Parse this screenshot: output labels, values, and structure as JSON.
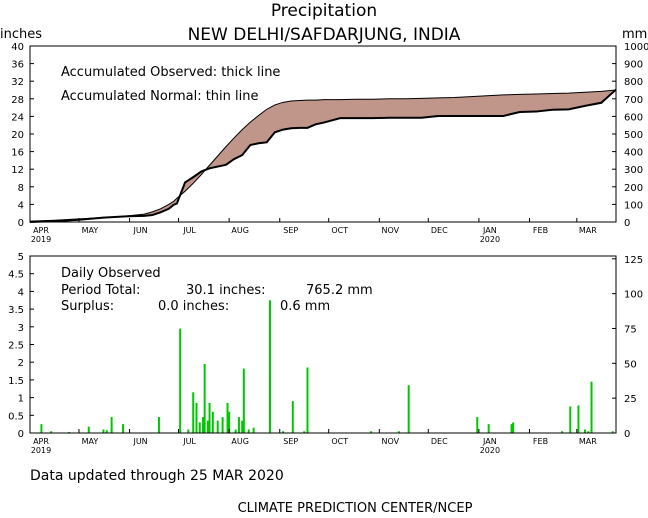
{
  "chart_data": {
    "title": "Precipitation",
    "subtitle": "NEW DELHI/SAFDARJUNG, INDIA",
    "months": [
      "APR",
      "MAY",
      "JUN",
      "JUL",
      "AUG",
      "SEP",
      "OCT",
      "NOV",
      "DEC",
      "JAN",
      "FEB",
      "MAR"
    ],
    "year_labels": [
      {
        "after_month": "APR",
        "text": "2019"
      },
      {
        "after_month": "JAN",
        "text": "2020"
      }
    ],
    "top_panel": {
      "type": "area",
      "ylabel_left": "inches",
      "ylabel_right": "mm",
      "left_ticks": [
        0,
        4,
        8,
        12,
        16,
        20,
        24,
        28,
        32,
        36,
        40
      ],
      "right_ticks": [
        0,
        100,
        200,
        300,
        400,
        500,
        600,
        700,
        800,
        900,
        1000
      ],
      "ylim_in": [
        0,
        40
      ],
      "ylim_mm": [
        0,
        1000
      ],
      "legend_line1": "Accumulated Observed: thick line",
      "legend_line2": "Accumulated Normal: thin line",
      "x_days": [
        0,
        15,
        30,
        45,
        60,
        70,
        75,
        80,
        85,
        88,
        90,
        95,
        100,
        105,
        110,
        115,
        120,
        125,
        130,
        135,
        140,
        145,
        150,
        155,
        160,
        165,
        170,
        175,
        180,
        190,
        200,
        210,
        220,
        230,
        240,
        250,
        260,
        270,
        280,
        290,
        300,
        310,
        320,
        330,
        340,
        350,
        359
      ],
      "normal_in": [
        0.2,
        0.4,
        0.7,
        1.0,
        1.4,
        1.8,
        2.3,
        3.0,
        4.0,
        4.7,
        5.4,
        7.0,
        8.8,
        10.8,
        12.9,
        15.0,
        17.1,
        19.1,
        21.0,
        22.7,
        24.2,
        25.6,
        26.6,
        27.2,
        27.5,
        27.6,
        27.7,
        27.7,
        27.8,
        27.8,
        27.9,
        27.9,
        28.0,
        28.0,
        28.1,
        28.2,
        28.3,
        28.5,
        28.7,
        28.9,
        29.0,
        29.1,
        29.2,
        29.3,
        29.5,
        29.7,
        30.0
      ],
      "observed_in": [
        0.0,
        0.2,
        0.5,
        1.0,
        1.3,
        1.4,
        1.6,
        2.2,
        3.0,
        3.9,
        4.2,
        9.0,
        10.2,
        11.5,
        12.2,
        12.6,
        13.0,
        14.3,
        15.2,
        17.5,
        17.9,
        18.1,
        20.4,
        21.0,
        21.3,
        21.4,
        21.4,
        22.2,
        22.6,
        23.6,
        23.6,
        23.6,
        23.7,
        23.7,
        23.7,
        24.1,
        24.1,
        24.1,
        24.1,
        24.1,
        25.0,
        25.1,
        25.5,
        25.6,
        26.4,
        27.1,
        30.1
      ]
    },
    "bottom_panel": {
      "type": "bar",
      "left_ticks": [
        0,
        0.5,
        1,
        1.5,
        2,
        2.5,
        3,
        3.5,
        4,
        4.5,
        5
      ],
      "right_ticks": [
        0,
        25,
        50,
        75,
        100,
        125
      ],
      "ylim_in": [
        0,
        5
      ],
      "ylim_mm": [
        0,
        127
      ],
      "heading": "Daily Observed",
      "period_total_label": "Period Total:",
      "period_total_in": "30.1 inches:",
      "period_total_mm": "765.2 mm",
      "surplus_label": "Surplus:",
      "surplus_in": "0.0 inches:",
      "surplus_mm": "0.6 mm",
      "bar_color": "#00c800",
      "bars": [
        {
          "day": 7,
          "in": 0.25
        },
        {
          "day": 13,
          "in": 0.05
        },
        {
          "day": 24,
          "in": 0.03
        },
        {
          "day": 36,
          "in": 0.18
        },
        {
          "day": 45,
          "in": 0.1
        },
        {
          "day": 47,
          "in": 0.08
        },
        {
          "day": 50,
          "in": 0.45
        },
        {
          "day": 57,
          "in": 0.25
        },
        {
          "day": 79,
          "in": 0.45
        },
        {
          "day": 92,
          "in": 2.95
        },
        {
          "day": 97,
          "in": 0.1
        },
        {
          "day": 100,
          "in": 1.15
        },
        {
          "day": 102,
          "in": 0.85
        },
        {
          "day": 104,
          "in": 0.3
        },
        {
          "day": 106,
          "in": 0.45
        },
        {
          "day": 107,
          "in": 1.95
        },
        {
          "day": 109,
          "in": 0.35
        },
        {
          "day": 110,
          "in": 0.85
        },
        {
          "day": 112,
          "in": 0.6
        },
        {
          "day": 115,
          "in": 0.35
        },
        {
          "day": 118,
          "in": 0.45
        },
        {
          "day": 121,
          "in": 0.85
        },
        {
          "day": 122,
          "in": 0.6
        },
        {
          "day": 126,
          "in": 0.1
        },
        {
          "day": 128,
          "in": 0.45
        },
        {
          "day": 130,
          "in": 0.35
        },
        {
          "day": 131,
          "in": 1.82
        },
        {
          "day": 134,
          "in": 0.1
        },
        {
          "day": 137,
          "in": 0.15
        },
        {
          "day": 147,
          "in": 3.75
        },
        {
          "day": 155,
          "in": 0.05
        },
        {
          "day": 161,
          "in": 0.9
        },
        {
          "day": 168,
          "in": 0.05
        },
        {
          "day": 170,
          "in": 1.85
        },
        {
          "day": 209,
          "in": 0.05
        },
        {
          "day": 226,
          "in": 0.05
        },
        {
          "day": 232,
          "in": 1.35
        },
        {
          "day": 274,
          "in": 0.45
        },
        {
          "day": 281,
          "in": 0.25
        },
        {
          "day": 295,
          "in": 0.25
        },
        {
          "day": 296,
          "in": 0.3
        },
        {
          "day": 326,
          "in": 0.05
        },
        {
          "day": 331,
          "in": 0.75
        },
        {
          "day": 336,
          "in": 0.78
        },
        {
          "day": 340,
          "in": 0.1
        },
        {
          "day": 342,
          "in": 0.05
        },
        {
          "day": 344,
          "in": 1.45
        },
        {
          "day": 357,
          "in": 0.05
        }
      ]
    }
  },
  "footer": {
    "updated": "Data updated through 25 MAR 2020",
    "credit": "CLIMATE PREDICTION CENTER/NCEP"
  }
}
